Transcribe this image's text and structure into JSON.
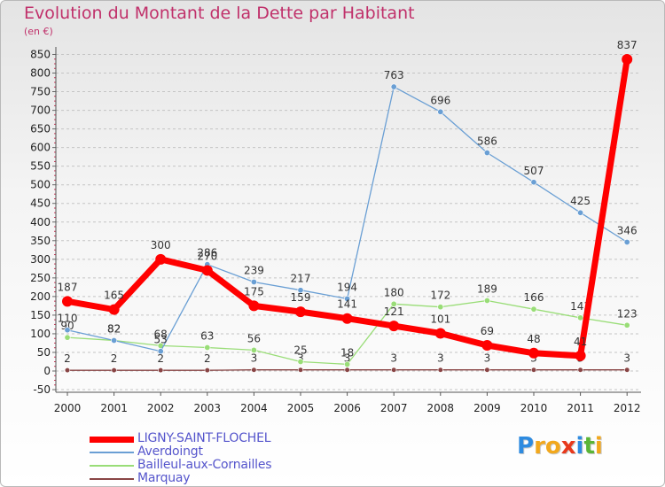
{
  "title": "Evolution du Montant de la Dette par Habitant",
  "unit_label": "(en €)",
  "logo": {
    "letters": [
      "P",
      "r",
      "o",
      "x",
      "i",
      "t",
      "i"
    ],
    "colors": [
      "#2e8be0",
      "#f2a81d",
      "#f2a81d",
      "#e8391c",
      "#2e8be0",
      "#5bb536",
      "#f2a81d"
    ]
  },
  "chart_data": {
    "type": "line",
    "x": [
      "2000",
      "2001",
      "2002",
      "2003",
      "2004",
      "2005",
      "2006",
      "2007",
      "2008",
      "2009",
      "2010",
      "2011",
      "2012"
    ],
    "ylim": [
      -50,
      850
    ],
    "yticks": [
      "-50",
      "0",
      "50",
      "100",
      "150",
      "200",
      "250",
      "300",
      "350",
      "400",
      "450",
      "500",
      "550",
      "600",
      "650",
      "700",
      "750",
      "800",
      "850"
    ],
    "grid": "horizontal dashed",
    "legend_position": "bottom-left",
    "series": [
      {
        "name": "LIGNY-SAINT-FLOCHEL",
        "color": "#ff0000",
        "values": [
          187,
          165,
          300,
          270,
          175,
          159,
          141,
          121,
          101,
          69,
          48,
          41,
          837
        ],
        "labels": [
          "187",
          "165",
          "300",
          "270",
          "175",
          "159",
          "141",
          "121",
          "101",
          "69",
          "48",
          "41",
          "837"
        ]
      },
      {
        "name": "Averdoingt",
        "color": "#6a9fd4",
        "values": [
          110,
          82,
          53,
          286,
          239,
          217,
          194,
          763,
          696,
          586,
          507,
          425,
          346
        ],
        "labels": [
          "110",
          "82",
          "53",
          "286",
          "239",
          "217",
          "194",
          "763",
          "696",
          "586",
          "507",
          "425",
          "346"
        ]
      },
      {
        "name": "Bailleul-aux-Cornailles",
        "color": "#99dd77",
        "values": [
          90,
          82,
          68,
          63,
          56,
          25,
          18,
          180,
          172,
          189,
          166,
          143,
          123
        ],
        "labels": [
          "90",
          "82",
          "68",
          "63",
          "56",
          "25",
          "18",
          "180",
          "172",
          "189",
          "166",
          "143",
          "123"
        ]
      },
      {
        "name": "Marquay",
        "color": "#884444",
        "values": [
          2,
          2,
          2,
          2,
          3,
          3,
          3,
          3,
          3,
          3,
          3,
          3,
          3
        ],
        "labels": [
          "2",
          "2",
          "2",
          "2",
          "3",
          "3",
          "3",
          "3",
          "3",
          "3",
          "3",
          "3",
          "3"
        ]
      }
    ]
  }
}
